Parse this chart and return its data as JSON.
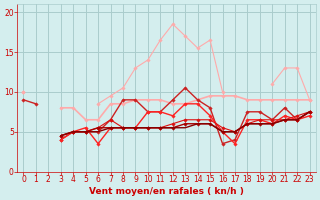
{
  "xlabel": "Vent moyen/en rafales ( kn/h )",
  "x_values": [
    0,
    1,
    2,
    3,
    4,
    5,
    6,
    7,
    8,
    9,
    10,
    11,
    12,
    13,
    14,
    15,
    16,
    17,
    18,
    19,
    20,
    21,
    22,
    23
  ],
  "series": [
    {
      "color": "#ffaaaa",
      "linewidth": 0.8,
      "marker": "D",
      "markersize": 1.8,
      "y": [
        10.0,
        null,
        null,
        null,
        null,
        null,
        8.5,
        9.5,
        10.5,
        13.0,
        14.0,
        16.5,
        18.5,
        17.0,
        15.5,
        16.5,
        10.0,
        null,
        null,
        null,
        11.0,
        13.0,
        13.0,
        9.0
      ]
    },
    {
      "color": "#ffaaaa",
      "linewidth": 1.2,
      "marker": "D",
      "markersize": 1.8,
      "y": [
        10.0,
        null,
        null,
        8.0,
        8.0,
        6.5,
        6.5,
        8.5,
        8.5,
        9.0,
        9.0,
        9.0,
        8.5,
        8.5,
        9.0,
        9.5,
        9.5,
        9.5,
        9.0,
        9.0,
        9.0,
        9.0,
        9.0,
        9.0
      ]
    },
    {
      "color": "#cc2222",
      "linewidth": 1.0,
      "marker": "D",
      "markersize": 1.8,
      "y": [
        9.0,
        8.5,
        null,
        4.0,
        5.0,
        5.0,
        5.0,
        6.5,
        9.0,
        9.0,
        7.5,
        7.5,
        9.0,
        10.5,
        9.0,
        8.0,
        3.5,
        4.0,
        7.5,
        7.5,
        6.5,
        8.0,
        6.5,
        7.5
      ]
    },
    {
      "color": "#ff2222",
      "linewidth": 1.0,
      "marker": "D",
      "markersize": 1.8,
      "y": [
        null,
        null,
        null,
        4.0,
        5.0,
        5.5,
        3.5,
        5.5,
        5.5,
        5.5,
        7.5,
        7.5,
        7.0,
        8.5,
        8.5,
        7.0,
        5.0,
        3.5,
        6.5,
        6.5,
        6.0,
        7.0,
        6.5,
        7.0
      ]
    },
    {
      "color": "#dd1111",
      "linewidth": 0.8,
      "marker": "D",
      "markersize": 1.8,
      "y": [
        null,
        null,
        null,
        4.5,
        5.0,
        5.0,
        5.5,
        6.5,
        5.5,
        5.5,
        5.5,
        5.5,
        6.0,
        6.5,
        6.5,
        6.5,
        5.5,
        5.0,
        6.0,
        6.5,
        6.5,
        6.5,
        7.0,
        7.5
      ]
    },
    {
      "color": "#aa0000",
      "linewidth": 1.0,
      "marker": "D",
      "markersize": 1.8,
      "y": [
        null,
        null,
        null,
        4.5,
        5.0,
        5.0,
        5.5,
        5.5,
        5.5,
        5.5,
        5.5,
        5.5,
        5.5,
        6.0,
        6.0,
        6.0,
        5.0,
        5.0,
        6.0,
        6.0,
        6.0,
        6.5,
        6.5,
        7.5
      ]
    },
    {
      "color": "#880000",
      "linewidth": 1.0,
      "marker": null,
      "markersize": 0,
      "y": [
        null,
        null,
        null,
        4.5,
        5.0,
        5.0,
        5.0,
        5.5,
        5.5,
        5.5,
        5.5,
        5.5,
        5.5,
        5.5,
        6.0,
        6.0,
        5.0,
        5.0,
        6.0,
        6.0,
        6.0,
        6.5,
        6.5,
        7.5
      ]
    }
  ],
  "ylim": [
    0,
    21
  ],
  "yticks": [
    0,
    5,
    10,
    15,
    20
  ],
  "xlim": [
    -0.5,
    23.5
  ],
  "bg_color": "#d4eeee",
  "grid_color": "#aacccc",
  "tick_color": "#cc0000",
  "label_color": "#cc0000",
  "axis_label_fontsize": 6.5,
  "tick_fontsize": 5.5
}
